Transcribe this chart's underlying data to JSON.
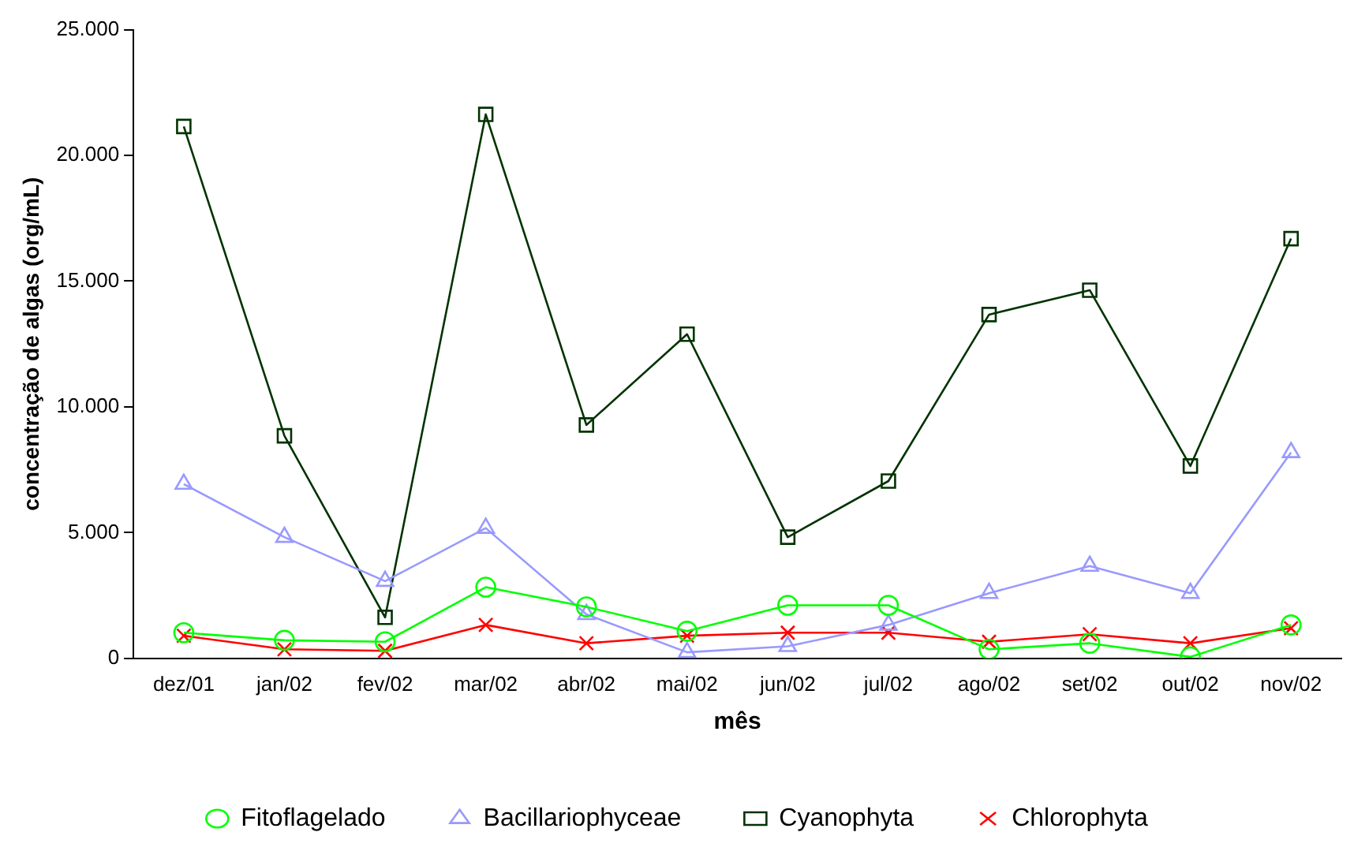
{
  "chart_data": {
    "type": "line",
    "xlabel": "mês",
    "ylabel": "concentração de algas (org/mL)",
    "categories": [
      "dez/01",
      "jan/02",
      "fev/02",
      "mar/02",
      "abr/02",
      "mai/02",
      "jun/02",
      "jul/02",
      "ago/02",
      "set/02",
      "out/02",
      "nov/02"
    ],
    "series": [
      {
        "name": "Fitoflagelado",
        "color": "#00ff00",
        "marker": "circle",
        "values": [
          1020,
          720,
          660,
          2830,
          2050,
          1080,
          2110,
          2110,
          360,
          600,
          60,
          1330
        ]
      },
      {
        "name": "Bacillariophyceae",
        "color": "#9999ff",
        "marker": "triangle",
        "values": [
          6930,
          4820,
          3070,
          5180,
          1750,
          240,
          480,
          1330,
          2590,
          3670,
          2590,
          8190
        ]
      },
      {
        "name": "Cyanophyta",
        "color": "#003300",
        "marker": "square",
        "values": [
          21150,
          8850,
          1630,
          21630,
          9280,
          12890,
          4820,
          7050,
          13670,
          14640,
          7650,
          16690
        ]
      },
      {
        "name": "Chlorophyta",
        "color": "#ff0000",
        "marker": "cross",
        "values": [
          900,
          360,
          300,
          1330,
          600,
          900,
          1020,
          1020,
          660,
          960,
          600,
          1200
        ]
      }
    ],
    "ylim": [
      0,
      25000
    ],
    "yticks": [
      {
        "value": 0,
        "label": "0"
      },
      {
        "value": 5000,
        "label": "5.000"
      },
      {
        "value": 10000,
        "label": "10.000"
      },
      {
        "value": 15000,
        "label": "15.000"
      },
      {
        "value": 20000,
        "label": "20.000"
      },
      {
        "value": 25000,
        "label": "25.000"
      }
    ],
    "grid": false,
    "legend": "bottom",
    "line_style": "solid"
  }
}
